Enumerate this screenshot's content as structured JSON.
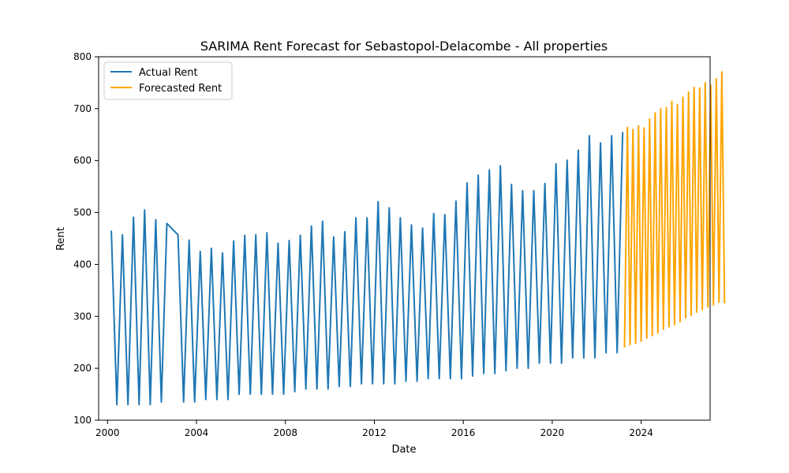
{
  "chart_data": {
    "type": "line",
    "title": "SARIMA Rent Forecast for Sebastopol-Delacombe - All properties",
    "xlabel": "Date",
    "ylabel": "Rent",
    "xlim": [
      1999.6,
      2027.1
    ],
    "ylim": [
      100,
      800
    ],
    "x_ticks": [
      2000,
      2004,
      2008,
      2012,
      2016,
      2020,
      2024
    ],
    "y_ticks": [
      100,
      200,
      300,
      400,
      500,
      600,
      700,
      800
    ],
    "grid": false,
    "legend_position": "top-left",
    "colors": {
      "actual": "#1f77b4",
      "forecast": "#ffa500"
    },
    "series": [
      {
        "name": "Actual Rent",
        "points": [
          [
            2000.17,
            465
          ],
          [
            2000.42,
            130
          ],
          [
            2000.67,
            457
          ],
          [
            2000.92,
            130
          ],
          [
            2001.17,
            491
          ],
          [
            2001.42,
            130
          ],
          [
            2001.67,
            505
          ],
          [
            2001.92,
            130
          ],
          [
            2002.17,
            486
          ],
          [
            2002.42,
            135
          ],
          [
            2002.67,
            479
          ],
          [
            2003.17,
            457
          ],
          [
            2003.42,
            135
          ],
          [
            2003.67,
            447
          ],
          [
            2003.92,
            135
          ],
          [
            2004.17,
            425
          ],
          [
            2004.42,
            140
          ],
          [
            2004.67,
            431
          ],
          [
            2004.92,
            140
          ],
          [
            2005.17,
            422
          ],
          [
            2005.42,
            140
          ],
          [
            2005.67,
            445
          ],
          [
            2005.92,
            150
          ],
          [
            2006.17,
            456
          ],
          [
            2006.42,
            150
          ],
          [
            2006.67,
            457
          ],
          [
            2006.92,
            150
          ],
          [
            2007.17,
            461
          ],
          [
            2007.42,
            150
          ],
          [
            2007.67,
            441
          ],
          [
            2007.92,
            150
          ],
          [
            2008.17,
            446
          ],
          [
            2008.42,
            155
          ],
          [
            2008.67,
            456
          ],
          [
            2008.92,
            160
          ],
          [
            2009.17,
            474
          ],
          [
            2009.42,
            160
          ],
          [
            2009.67,
            483
          ],
          [
            2009.92,
            160
          ],
          [
            2010.17,
            453
          ],
          [
            2010.42,
            165
          ],
          [
            2010.67,
            463
          ],
          [
            2010.92,
            165
          ],
          [
            2011.17,
            490
          ],
          [
            2011.42,
            170
          ],
          [
            2011.67,
            490
          ],
          [
            2011.92,
            170
          ],
          [
            2012.17,
            521
          ],
          [
            2012.42,
            170
          ],
          [
            2012.67,
            509
          ],
          [
            2012.92,
            170
          ],
          [
            2013.17,
            490
          ],
          [
            2013.42,
            175
          ],
          [
            2013.67,
            476
          ],
          [
            2013.92,
            175
          ],
          [
            2014.17,
            470
          ],
          [
            2014.42,
            180
          ],
          [
            2014.67,
            498
          ],
          [
            2014.92,
            180
          ],
          [
            2015.17,
            496
          ],
          [
            2015.42,
            180
          ],
          [
            2015.67,
            522
          ],
          [
            2015.92,
            180
          ],
          [
            2016.17,
            557
          ],
          [
            2016.42,
            185
          ],
          [
            2016.67,
            572
          ],
          [
            2016.92,
            190
          ],
          [
            2017.17,
            582
          ],
          [
            2017.42,
            190
          ],
          [
            2017.67,
            590
          ],
          [
            2017.92,
            195
          ],
          [
            2018.17,
            554
          ],
          [
            2018.42,
            200
          ],
          [
            2018.67,
            542
          ],
          [
            2018.92,
            200
          ],
          [
            2019.17,
            542
          ],
          [
            2019.42,
            210
          ],
          [
            2019.67,
            556
          ],
          [
            2019.92,
            210
          ],
          [
            2020.17,
            594
          ],
          [
            2020.42,
            210
          ],
          [
            2020.67,
            601
          ],
          [
            2020.92,
            220
          ],
          [
            2021.17,
            620
          ],
          [
            2021.42,
            220
          ],
          [
            2021.67,
            648
          ],
          [
            2021.92,
            220
          ],
          [
            2022.17,
            634
          ],
          [
            2022.42,
            230
          ],
          [
            2022.67,
            648
          ],
          [
            2022.92,
            230
          ],
          [
            2023.17,
            655
          ]
        ]
      },
      {
        "name": "Forecasted Rent",
        "points": [
          [
            2023.25,
            240
          ],
          [
            2023.38,
            664
          ],
          [
            2023.5,
            245
          ],
          [
            2023.63,
            660
          ],
          [
            2023.75,
            248
          ],
          [
            2023.88,
            667
          ],
          [
            2024.0,
            252
          ],
          [
            2024.13,
            663
          ],
          [
            2024.25,
            258
          ],
          [
            2024.38,
            680
          ],
          [
            2024.5,
            263
          ],
          [
            2024.63,
            692
          ],
          [
            2024.75,
            268
          ],
          [
            2024.88,
            700
          ],
          [
            2025.0,
            275
          ],
          [
            2025.13,
            702
          ],
          [
            2025.25,
            280
          ],
          [
            2025.38,
            714
          ],
          [
            2025.5,
            284
          ],
          [
            2025.63,
            708
          ],
          [
            2025.75,
            290
          ],
          [
            2025.88,
            722
          ],
          [
            2026.0,
            297
          ],
          [
            2026.13,
            732
          ],
          [
            2026.25,
            302
          ],
          [
            2026.38,
            741
          ],
          [
            2026.5,
            308
          ],
          [
            2026.63,
            740
          ],
          [
            2026.75,
            313
          ],
          [
            2026.88,
            750
          ],
          [
            2027.0,
            318
          ],
          [
            2027.13,
            745
          ],
          [
            2027.25,
            322
          ],
          [
            2027.38,
            758
          ],
          [
            2027.5,
            327
          ],
          [
            2027.63,
            771
          ],
          [
            2027.75,
            325
          ]
        ]
      }
    ]
  }
}
